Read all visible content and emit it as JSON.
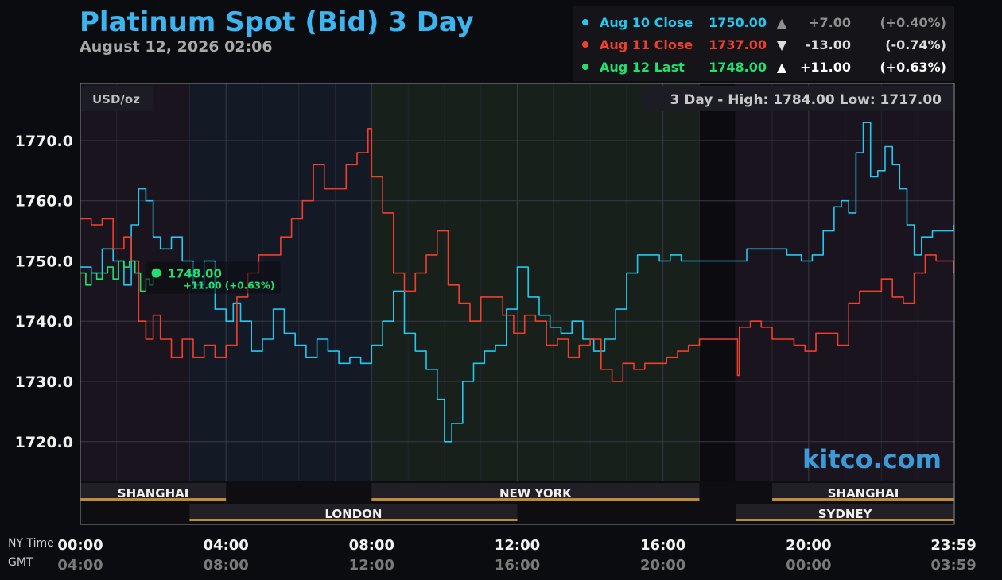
{
  "header": {
    "title": "Platinum Spot (Bid) 3 Day",
    "timestamp": "August 12, 2026 02:06"
  },
  "legend": [
    {
      "label": "Aug 10 Close",
      "price": "1750.00",
      "arrow": "▲",
      "change": "+7.00",
      "pct": "(+0.40%)",
      "color": "#22c8f0",
      "value_color": "#22c8f0",
      "change_color": "#8f8f8f"
    },
    {
      "label": "Aug 11 Close",
      "price": "1737.00",
      "arrow": "▼",
      "change": "-13.00",
      "pct": "(-0.74%)",
      "color": "#f0402c",
      "value_color": "#f0402c",
      "change_color": "#dcdcdc"
    },
    {
      "label": "Aug 12 Last",
      "price": "1748.00",
      "arrow": "▲",
      "change": "+11.00",
      "pct": "(+0.63%)",
      "color": "#22e070",
      "value_color": "#22e070",
      "change_color": "#ffffff"
    }
  ],
  "plot": {
    "unit_label": "USD/oz",
    "range_text": "3 Day - High: 1784.00  Low: 1717.00",
    "watermark": "kitco.com",
    "current_price": "1748.00",
    "current_change": "+11.00 (+0.63%)"
  },
  "sessions": [
    {
      "name": "SHANGHAI",
      "start": 0,
      "end": 4,
      "row": 1
    },
    {
      "name": "LONDON",
      "start": 3,
      "end": 12,
      "row": 2
    },
    {
      "name": "NEW YORK",
      "start": 8,
      "end": 17,
      "row": 1
    },
    {
      "name": "SYDNEY",
      "start": 18,
      "end": 24,
      "row": 2
    },
    {
      "name": "SHANGHAI",
      "start": 19,
      "end": 24,
      "row": 1
    }
  ],
  "time_axis": {
    "ny_label": "NY Time",
    "gmt_label": "GMT",
    "ticks": [
      {
        "hour": 0,
        "ny": "00:00",
        "gmt": "04:00"
      },
      {
        "hour": 4,
        "ny": "04:00",
        "gmt": "08:00"
      },
      {
        "hour": 8,
        "ny": "08:00",
        "gmt": "12:00"
      },
      {
        "hour": 12,
        "ny": "12:00",
        "gmt": "16:00"
      },
      {
        "hour": 16,
        "ny": "16:00",
        "gmt": "20:00"
      },
      {
        "hour": 20,
        "ny": "20:00",
        "gmt": "00:00"
      },
      {
        "hour": 23.98,
        "ny": "23:59",
        "gmt": "03:59"
      }
    ]
  },
  "chart_data": {
    "type": "line",
    "xlabel": "",
    "ylabel": "USD/oz",
    "xlim": [
      0,
      24
    ],
    "ylim": [
      1713.5,
      1779.5
    ],
    "yticks": [
      1720,
      1730,
      1740,
      1750,
      1760,
      1770
    ],
    "ytick_labels": [
      "1720.0",
      "1730.0",
      "1740.0",
      "1750.0",
      "1760.0",
      "1770.0"
    ],
    "series": [
      {
        "name": "Aug 10 Close",
        "color": "#22c8f0",
        "x": [
          0,
          0.3,
          0.6,
          0.9,
          1.2,
          1.4,
          1.6,
          1.8,
          2.0,
          2.2,
          2.5,
          2.8,
          3.1,
          3.4,
          3.7,
          4.0,
          4.2,
          4.4,
          4.7,
          5.0,
          5.3,
          5.6,
          5.9,
          6.2,
          6.5,
          6.8,
          7.1,
          7.4,
          7.7,
          8.0,
          8.3,
          8.6,
          8.9,
          9.2,
          9.5,
          9.8,
          10.0,
          10.2,
          10.5,
          10.8,
          11.1,
          11.4,
          11.7,
          12.0,
          12.3,
          12.6,
          12.9,
          13.2,
          13.5,
          13.8,
          14.1,
          14.4,
          14.7,
          15.0,
          15.3,
          15.6,
          15.9,
          16.2,
          16.5,
          16.8,
          17.0,
          18.0,
          18.3,
          18.7,
          19.0,
          19.4,
          19.8,
          20.1,
          20.4,
          20.7,
          20.9,
          21.1,
          21.3,
          21.5,
          21.7,
          21.9,
          22.1,
          22.3,
          22.5,
          22.7,
          22.9,
          23.1,
          23.4,
          23.7,
          23.98
        ],
        "y": [
          1749,
          1748,
          1752,
          1750,
          1746,
          1756,
          1762,
          1760,
          1754,
          1752,
          1754,
          1750,
          1746,
          1750,
          1742,
          1740,
          1743,
          1740,
          1735,
          1737,
          1742,
          1738,
          1736,
          1734,
          1737,
          1735,
          1733,
          1734,
          1733,
          1736,
          1740,
          1745,
          1738,
          1735,
          1732,
          1727,
          1720,
          1723,
          1730,
          1733,
          1735,
          1736,
          1742,
          1749,
          1744,
          1741,
          1739,
          1738,
          1740,
          1737,
          1735,
          1737,
          1742,
          1748,
          1751,
          1751,
          1750,
          1751,
          1750,
          1750,
          1750,
          1750,
          1752,
          1752,
          1752,
          1751,
          1750,
          1751,
          1755,
          1759,
          1760,
          1758,
          1768,
          1773,
          1764,
          1765,
          1769,
          1766,
          1762,
          1756,
          1751,
          1754,
          1755,
          1755,
          1756
        ]
      },
      {
        "name": "Aug 11 Close",
        "color": "#f0402c",
        "x": [
          0,
          0.3,
          0.6,
          0.9,
          1.2,
          1.4,
          1.6,
          1.8,
          2.0,
          2.2,
          2.5,
          2.8,
          3.1,
          3.4,
          3.7,
          4.0,
          4.3,
          4.6,
          4.9,
          5.2,
          5.5,
          5.8,
          6.1,
          6.4,
          6.7,
          7.0,
          7.3,
          7.6,
          7.9,
          8.0,
          8.3,
          8.6,
          8.9,
          9.2,
          9.5,
          9.8,
          10.1,
          10.4,
          10.7,
          11.0,
          11.3,
          11.6,
          11.9,
          12.2,
          12.5,
          12.8,
          13.1,
          13.4,
          13.7,
          14.0,
          14.3,
          14.6,
          14.9,
          15.2,
          15.5,
          15.8,
          16.1,
          16.4,
          16.7,
          17.0,
          18.0,
          18.05,
          18.1,
          18.4,
          18.7,
          19.0,
          19.3,
          19.6,
          19.9,
          20.2,
          20.5,
          20.8,
          21.1,
          21.4,
          21.7,
          22.0,
          22.3,
          22.6,
          22.9,
          23.2,
          23.5,
          23.98
        ],
        "y": [
          1757,
          1756,
          1757,
          1752,
          1754,
          1750,
          1740,
          1737,
          1741,
          1737,
          1734,
          1737,
          1734,
          1736,
          1734,
          1736,
          1744,
          1748,
          1751,
          1751,
          1754,
          1757,
          1760,
          1766,
          1762,
          1762,
          1766,
          1768,
          1772,
          1764,
          1758,
          1748,
          1745,
          1748,
          1751,
          1755,
          1746,
          1743,
          1740,
          1744,
          1744,
          1741,
          1738,
          1741,
          1740,
          1736,
          1737,
          1734,
          1736,
          1737,
          1732,
          1730,
          1733,
          1732,
          1733,
          1733,
          1734,
          1735,
          1736,
          1737,
          1737,
          1731,
          1739,
          1740,
          1739,
          1737,
          1737,
          1736,
          1735,
          1738,
          1738,
          1736,
          1743,
          1745,
          1745,
          1747,
          1744,
          1743,
          1748,
          1751,
          1750,
          1748
        ]
      },
      {
        "name": "Aug 12 Last",
        "color": "#22e070",
        "x": [
          0,
          0.15,
          0.3,
          0.45,
          0.6,
          0.75,
          0.9,
          1.05,
          1.2,
          1.35,
          1.5,
          1.65,
          1.8,
          1.9,
          2.0
        ],
        "y": [
          1748,
          1746,
          1748,
          1747,
          1748,
          1749,
          1747,
          1750,
          1749,
          1750,
          1748,
          1745,
          1747,
          1746,
          1748
        ]
      }
    ]
  }
}
